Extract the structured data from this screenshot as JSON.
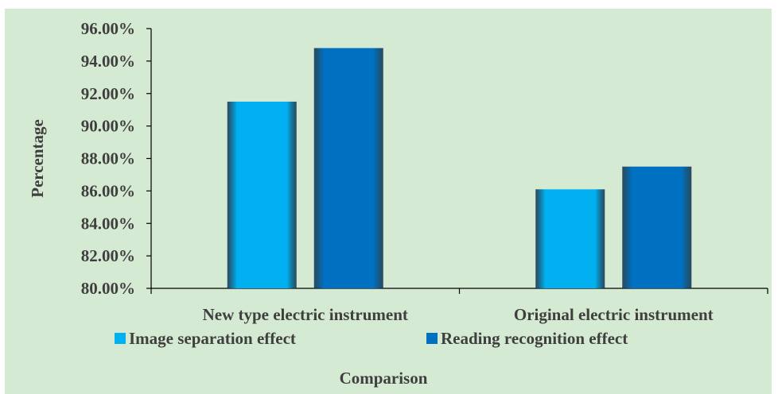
{
  "chart_data": {
    "type": "bar",
    "categories": [
      "New type electric instrument",
      "Original electric instrument"
    ],
    "series": [
      {
        "name": "Image separation effect",
        "values": [
          91.5,
          86.1
        ],
        "color": "#00b0f0"
      },
      {
        "name": "Reading recognition effect",
        "values": [
          94.8,
          87.5
        ],
        "color": "#0070c0"
      }
    ],
    "ylim": [
      80,
      96
    ],
    "yticks": [
      "80.00%",
      "82.00%",
      "84.00%",
      "86.00%",
      "88.00%",
      "90.00%",
      "92.00%",
      "94.00%",
      "96.00%"
    ],
    "xlabel": "Comparison",
    "ylabel": "Percentage",
    "legend_position": "bottom",
    "grid": false,
    "background": "#d5ead3"
  }
}
